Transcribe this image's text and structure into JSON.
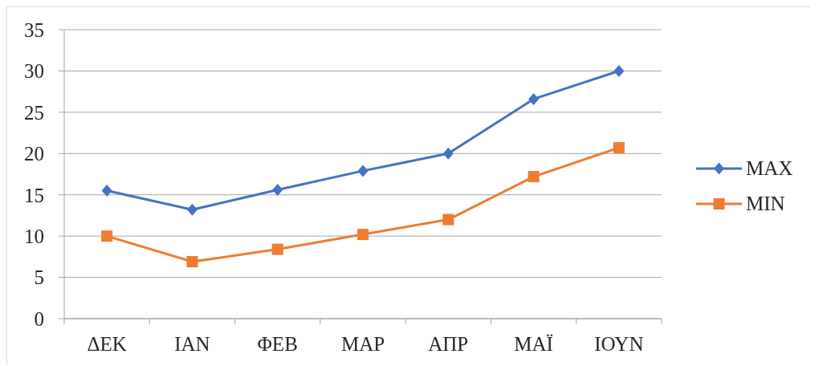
{
  "chart_data": {
    "type": "line",
    "categories": [
      "ΔΕΚ",
      "ΙΑΝ",
      "ΦΕΒ",
      "ΜΑΡ",
      "ΑΠΡ",
      "ΜΑΪ",
      "ΙΟΥΝ"
    ],
    "series": [
      {
        "name": "MAX",
        "color": "#4472c4",
        "marker": "diamond",
        "values": [
          15.5,
          13.2,
          15.6,
          17.9,
          20.0,
          26.6,
          30.0
        ]
      },
      {
        "name": "MIN",
        "color": "#ed7d31",
        "marker": "square",
        "values": [
          10.0,
          6.9,
          8.4,
          10.2,
          12.0,
          17.2,
          20.7
        ]
      }
    ],
    "ylim": [
      0,
      35
    ],
    "yticks": [
      0,
      5,
      10,
      15,
      20,
      25,
      30,
      35
    ],
    "grid": "y",
    "legend": "right",
    "line_style": "solid"
  }
}
